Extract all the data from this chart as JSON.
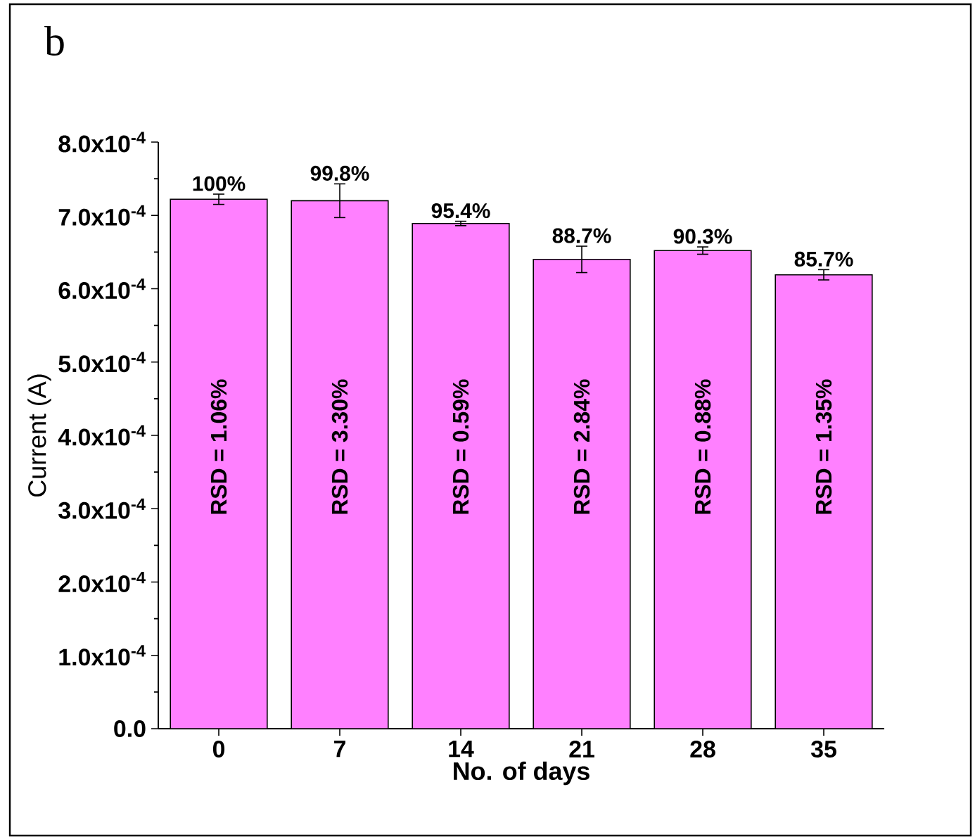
{
  "chart_data": {
    "type": "bar",
    "xlabel": "No. of days",
    "ylabel": "Current (A)",
    "categories": [
      "0",
      "7",
      "14",
      "21",
      "28",
      "35"
    ],
    "values": [
      0.000722,
      0.00072,
      0.000689,
      0.00064,
      0.000652,
      0.000619
    ],
    "errors": [
      7e-06,
      2.3e-05,
      3e-06,
      1.8e-05,
      5e-06,
      7e-06
    ],
    "color": "#ff80ff",
    "ylim": [
      0,
      0.0008
    ],
    "yticks": [
      {
        "value": 0,
        "label": "0.0"
      },
      {
        "value": 0.0001,
        "label": "1.0x10$^{-4}$"
      },
      {
        "value": 0.0002,
        "label": "2.0x10$^{-4}$"
      },
      {
        "value": 0.0003,
        "label": "3.0x10$^{-4}$"
      },
      {
        "value": 0.0004,
        "label": "4.0x10$^{-4}$"
      },
      {
        "value": 0.0005,
        "label": "5.0x10$^{-4}$"
      },
      {
        "value": 0.0006,
        "label": "6.0x10$^{-4}$"
      },
      {
        "value": 0.0007,
        "label": "7.0x10$^{-4}$"
      },
      {
        "value": 0.0008,
        "label": "8.0x10$^{-4}$"
      }
    ],
    "annotations": [
      "b",
      {
        "text": "100%",
        "x": "0",
        "y": 0.000729
      },
      {
        "text": "99.8%",
        "x": "7",
        "y": 0.000743
      },
      {
        "text": "95.4%",
        "x": "14",
        "y": 0.000692
      },
      {
        "text": "88.7%",
        "x": "21",
        "y": 0.000658
      },
      {
        "text": "90.3%",
        "x": "28",
        "y": 0.000657
      },
      {
        "text": "85.7%",
        "x": "35",
        "y": 0.000626
      },
      "RSD = 1.06%",
      "RSD = 3.30%",
      "RSD = 0.59%",
      "RSD = 2.84%",
      "RSD = 0.88%",
      "RSD = 1.35%"
    ]
  }
}
